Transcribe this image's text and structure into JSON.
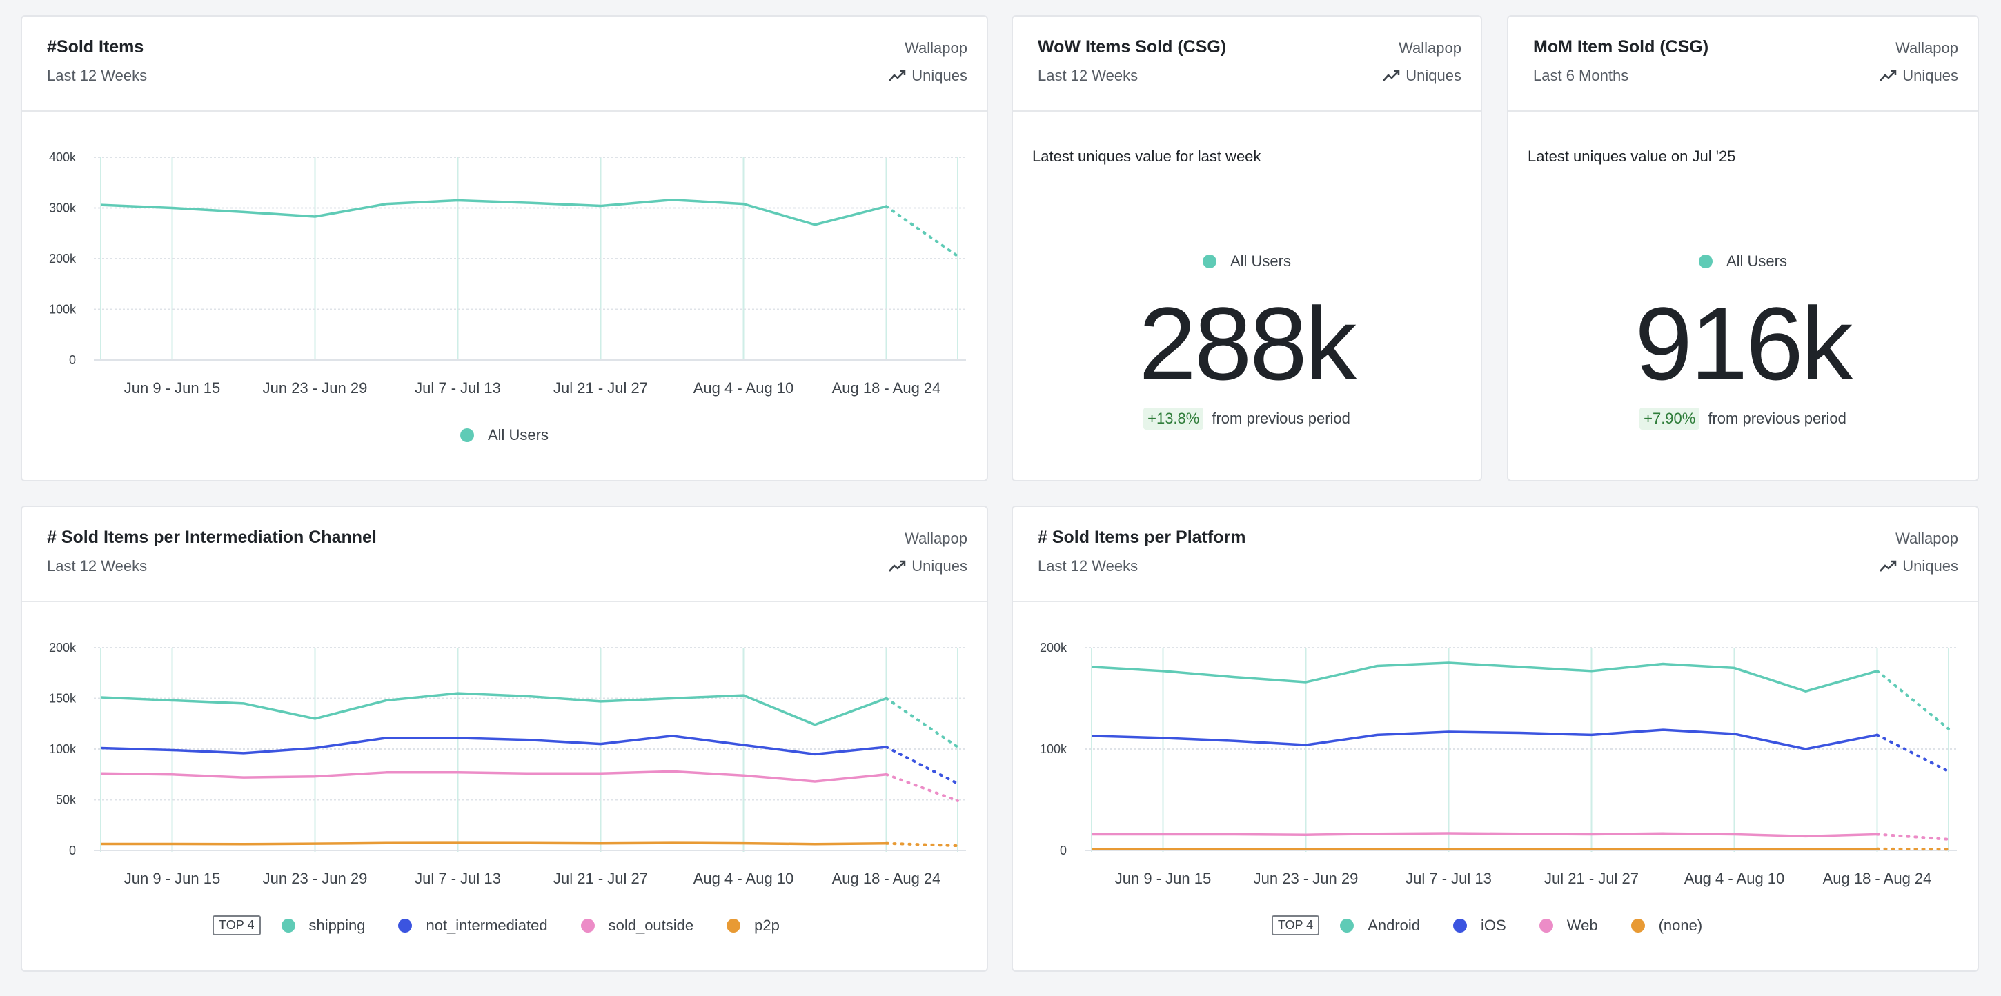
{
  "colors": {
    "teal": "#5fcbb6",
    "blue": "#3b54e0",
    "pink": "#ec8cc7",
    "orange": "#e89a34",
    "grid": "#dfe3e8",
    "vgrid": "#cfeee7",
    "delta_bg": "#e7f5ea",
    "delta_text": "#2f7d3a"
  },
  "icons": {
    "metric": "trend-line-icon"
  },
  "x_labels": [
    "Jun 9 - Jun 15",
    "Jun 23 - Jun 29",
    "Jul 7 - Jul 13",
    "Jul 21 - Jul 27",
    "Aug 4 - Aug 10",
    "Aug 18 - Aug 24"
  ],
  "cards": {
    "sold_items": {
      "title": "#Sold Items",
      "subtitle": "Last 12 Weeks",
      "source": "Wallapop",
      "metric": "Uniques",
      "legend": [
        "All Users"
      ]
    },
    "wow": {
      "title": "WoW Items Sold (CSG)",
      "subtitle": "Last 12 Weeks",
      "source": "Wallapop",
      "metric": "Uniques",
      "caption": "Latest uniques value for last week",
      "series_label": "All Users",
      "value": "288k",
      "delta": "+13.8%",
      "delta_text": "from previous period"
    },
    "mom": {
      "title": "MoM Item Sold (CSG)",
      "subtitle": "Last 6 Months",
      "source": "Wallapop",
      "metric": "Uniques",
      "caption": "Latest uniques value on Jul '25",
      "series_label": "All Users",
      "value": "916k",
      "delta": "+7.90%",
      "delta_text": "from previous period"
    },
    "channel": {
      "title": "# Sold Items per Intermediation Channel",
      "subtitle": "Last 12 Weeks",
      "source": "Wallapop",
      "metric": "Uniques",
      "badge": "TOP 4",
      "legend": [
        "shipping",
        "not_intermediated",
        "sold_outside",
        "p2p"
      ]
    },
    "platform": {
      "title": "# Sold Items per Platform",
      "subtitle": "Last 12 Weeks",
      "source": "Wallapop",
      "metric": "Uniques",
      "badge": "TOP 4",
      "legend": [
        "Android",
        "iOS",
        "Web",
        "(none)"
      ]
    }
  },
  "chart_data": [
    {
      "type": "line",
      "x_ticks": [
        "Jun 9 - Jun 15",
        "Jun 23 - Jun 29",
        "Jul 7 - Jul 13",
        "Jul 21 - Jul 27",
        "Aug 4 - Aug 10",
        "Aug 18 - Aug 24"
      ],
      "yticks": [
        "0",
        "100k",
        "200k",
        "300k",
        "400k"
      ],
      "ylim": [
        0,
        400000
      ],
      "grid": true,
      "legend_position": "bottom",
      "series": [
        {
          "name": "All Users",
          "color": "#5fcbb6",
          "values": [
            306000,
            300000,
            292000,
            283000,
            308000,
            315000,
            310000,
            304000,
            316000,
            308000,
            267000,
            303000,
            205000
          ],
          "partial_last": true
        }
      ]
    },
    {
      "type": "line",
      "x_ticks": [
        "Jun 9 - Jun 15",
        "Jun 23 - Jun 29",
        "Jul 7 - Jul 13",
        "Jul 21 - Jul 27",
        "Aug 4 - Aug 10",
        "Aug 18 - Aug 24"
      ],
      "yticks": [
        "0",
        "50k",
        "100k",
        "150k",
        "200k"
      ],
      "ylim": [
        0,
        200000
      ],
      "grid": true,
      "legend_position": "bottom",
      "series": [
        {
          "name": "shipping",
          "color": "#5fcbb6",
          "values": [
            151000,
            148000,
            145000,
            130000,
            148000,
            155000,
            152000,
            147000,
            150000,
            153000,
            124000,
            150000,
            102000
          ],
          "partial_last": true
        },
        {
          "name": "not_intermediated",
          "color": "#3b54e0",
          "values": [
            101000,
            99000,
            96000,
            101000,
            111000,
            111000,
            109000,
            105000,
            113000,
            104000,
            95000,
            102000,
            66000
          ],
          "partial_last": true
        },
        {
          "name": "sold_outside",
          "color": "#ec8cc7",
          "values": [
            76000,
            75000,
            72000,
            73000,
            77000,
            77000,
            76000,
            76000,
            78000,
            74000,
            68000,
            75000,
            49000
          ],
          "partial_last": true
        },
        {
          "name": "p2p",
          "color": "#e89a34",
          "values": [
            6500,
            6500,
            6300,
            6700,
            7300,
            7400,
            7300,
            7000,
            7400,
            7100,
            6300,
            7000,
            4700
          ],
          "partial_last": true
        }
      ]
    },
    {
      "type": "line",
      "x_ticks": [
        "Jun 9 - Jun 15",
        "Jun 23 - Jun 29",
        "Jul 7 - Jul 13",
        "Jul 21 - Jul 27",
        "Aug 4 - Aug 10",
        "Aug 18 - Aug 24"
      ],
      "yticks": [
        "0",
        "100k",
        "200k"
      ],
      "ylim": [
        0,
        200000
      ],
      "grid": true,
      "legend_position": "bottom",
      "series": [
        {
          "name": "Android",
          "color": "#5fcbb6",
          "values": [
            181000,
            177000,
            171000,
            166000,
            182000,
            185000,
            181000,
            177000,
            184000,
            180000,
            157000,
            177000,
            120000
          ],
          "partial_last": true
        },
        {
          "name": "iOS",
          "color": "#3b54e0",
          "values": [
            113000,
            111000,
            108000,
            104000,
            114000,
            117000,
            116000,
            114000,
            119000,
            115000,
            100000,
            114000,
            78000
          ],
          "partial_last": true
        },
        {
          "name": "Web",
          "color": "#ec8cc7",
          "values": [
            16000,
            16000,
            16000,
            15500,
            16500,
            17000,
            16500,
            16000,
            16800,
            16000,
            14000,
            16000,
            11000
          ],
          "partial_last": true
        },
        {
          "name": "(none)",
          "color": "#e89a34",
          "values": [
            1500,
            1500,
            1500,
            1500,
            1500,
            1500,
            1500,
            1500,
            1500,
            1500,
            1500,
            1500,
            1200
          ],
          "partial_last": true
        }
      ]
    }
  ]
}
